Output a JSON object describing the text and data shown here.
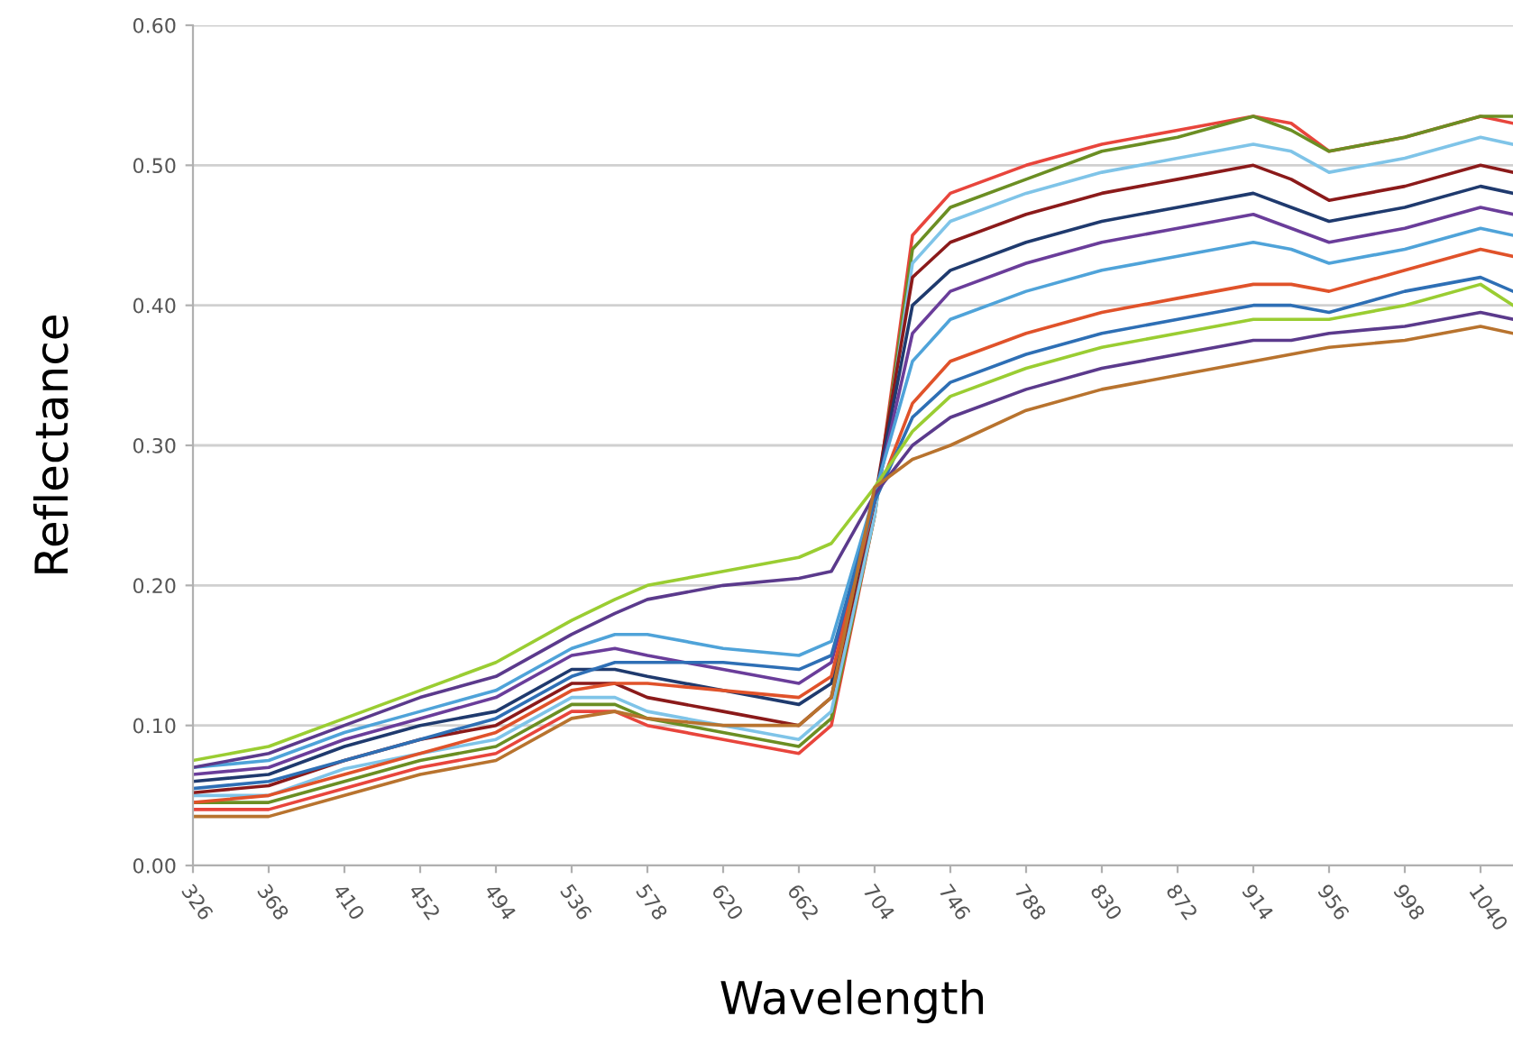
{
  "chart_data": {
    "type": "line",
    "xlabel": "Wavelength",
    "ylabel": "Reflectance",
    "x": [
      326,
      368,
      410,
      452,
      494,
      536,
      560,
      578,
      620,
      662,
      680,
      704,
      725,
      746,
      788,
      830,
      872,
      914,
      935,
      956,
      998,
      1040,
      1058
    ],
    "xlim": [
      326,
      1058
    ],
    "xticks": [
      326,
      368,
      410,
      452,
      494,
      536,
      578,
      620,
      662,
      704,
      746,
      788,
      830,
      872,
      914,
      956,
      998,
      1040
    ],
    "ylim": [
      0,
      0.6
    ],
    "yticks": [
      {
        "value": 0,
        "label": "0.00"
      },
      {
        "value": 0.1,
        "label": "0.10"
      },
      {
        "value": 0.2,
        "label": "0.20"
      },
      {
        "value": 0.3,
        "label": "0.30"
      },
      {
        "value": 0.4,
        "label": "0.40"
      },
      {
        "value": 0.5,
        "label": "0.50"
      },
      {
        "value": 0.6,
        "label": "0.60"
      }
    ],
    "grid": "y",
    "marker": "none",
    "line_style": "solid",
    "series": [
      {
        "color": "#e8453c",
        "values": [
          0.04,
          0.04,
          0.055,
          0.07,
          0.08,
          0.11,
          0.11,
          0.1,
          0.09,
          0.08,
          0.1,
          0.25,
          0.45,
          0.48,
          0.5,
          0.515,
          0.525,
          0.535,
          0.53,
          0.51,
          0.52,
          0.535,
          0.53
        ]
      },
      {
        "color": "#6b8e23",
        "values": [
          0.045,
          0.045,
          0.06,
          0.075,
          0.085,
          0.115,
          0.115,
          0.105,
          0.095,
          0.085,
          0.105,
          0.25,
          0.44,
          0.47,
          0.49,
          0.51,
          0.52,
          0.535,
          0.525,
          0.51,
          0.52,
          0.535,
          0.535
        ]
      },
      {
        "color": "#7fc4e8",
        "values": [
          0.05,
          0.05,
          0.069,
          0.08,
          0.09,
          0.12,
          0.12,
          0.11,
          0.1,
          0.09,
          0.11,
          0.25,
          0.43,
          0.46,
          0.48,
          0.495,
          0.505,
          0.515,
          0.51,
          0.495,
          0.505,
          0.52,
          0.515
        ]
      },
      {
        "color": "#8b1a1a",
        "values": [
          0.052,
          0.057,
          0.075,
          0.09,
          0.1,
          0.13,
          0.13,
          0.12,
          0.11,
          0.1,
          0.12,
          0.26,
          0.42,
          0.445,
          0.465,
          0.48,
          0.49,
          0.5,
          0.49,
          0.475,
          0.485,
          0.5,
          0.495
        ]
      },
      {
        "color": "#1f3a6e",
        "values": [
          0.06,
          0.065,
          0.085,
          0.1,
          0.11,
          0.14,
          0.14,
          0.135,
          0.125,
          0.115,
          0.13,
          0.26,
          0.4,
          0.425,
          0.445,
          0.46,
          0.47,
          0.48,
          0.47,
          0.46,
          0.47,
          0.485,
          0.48
        ]
      },
      {
        "color": "#6a3d9a",
        "values": [
          0.065,
          0.07,
          0.09,
          0.105,
          0.12,
          0.15,
          0.155,
          0.15,
          0.14,
          0.13,
          0.145,
          0.26,
          0.38,
          0.41,
          0.43,
          0.445,
          0.455,
          0.465,
          0.455,
          0.445,
          0.455,
          0.47,
          0.465
        ]
      },
      {
        "color": "#4fa3d9",
        "values": [
          0.07,
          0.075,
          0.095,
          0.11,
          0.125,
          0.155,
          0.165,
          0.165,
          0.155,
          0.15,
          0.16,
          0.265,
          0.36,
          0.39,
          0.41,
          0.425,
          0.435,
          0.445,
          0.44,
          0.43,
          0.44,
          0.455,
          0.45
        ]
      },
      {
        "color": "#e0522a",
        "values": [
          0.045,
          0.05,
          0.065,
          0.08,
          0.095,
          0.125,
          0.13,
          0.13,
          0.125,
          0.12,
          0.135,
          0.26,
          0.33,
          0.36,
          0.38,
          0.395,
          0.405,
          0.415,
          0.415,
          0.41,
          0.425,
          0.44,
          0.435
        ]
      },
      {
        "color": "#2e6fb5",
        "values": [
          0.055,
          0.06,
          0.075,
          0.09,
          0.105,
          0.135,
          0.145,
          0.145,
          0.145,
          0.14,
          0.15,
          0.26,
          0.32,
          0.345,
          0.365,
          0.38,
          0.39,
          0.4,
          0.4,
          0.395,
          0.41,
          0.42,
          0.41
        ]
      },
      {
        "color": "#9acd32",
        "values": [
          0.075,
          0.085,
          0.105,
          0.125,
          0.145,
          0.175,
          0.19,
          0.2,
          0.21,
          0.22,
          0.23,
          0.27,
          0.31,
          0.335,
          0.355,
          0.37,
          0.38,
          0.39,
          0.39,
          0.39,
          0.4,
          0.415,
          0.4
        ]
      },
      {
        "color": "#5b3a8c",
        "values": [
          0.07,
          0.08,
          0.1,
          0.12,
          0.135,
          0.165,
          0.18,
          0.19,
          0.2,
          0.205,
          0.21,
          0.265,
          0.3,
          0.32,
          0.34,
          0.355,
          0.365,
          0.375,
          0.375,
          0.38,
          0.385,
          0.395,
          0.39
        ]
      },
      {
        "color": "#b8732e",
        "values": [
          0.035,
          0.035,
          0.05,
          0.065,
          0.075,
          0.105,
          0.11,
          0.105,
          0.1,
          0.1,
          0.12,
          0.27,
          0.29,
          0.3,
          0.325,
          0.34,
          0.35,
          0.36,
          0.365,
          0.37,
          0.375,
          0.385,
          0.38
        ]
      }
    ]
  }
}
